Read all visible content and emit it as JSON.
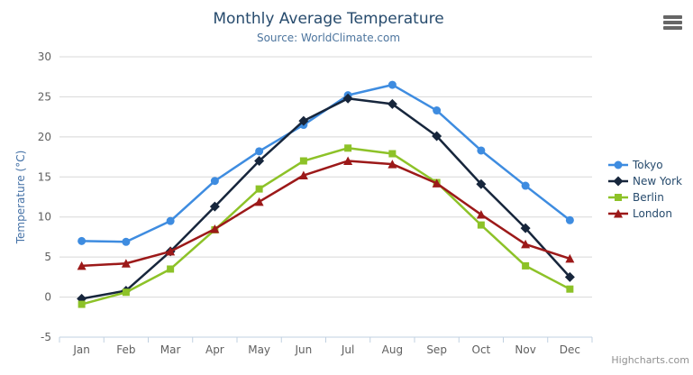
{
  "header": {
    "title": "Monthly Average Temperature",
    "subtitle": "Source: WorldClimate.com"
  },
  "controls": {
    "menu_icon": "hamburger-menu-icon"
  },
  "credits": {
    "label": "Highcharts.com"
  },
  "colors": {
    "title": "#274B6D",
    "subtitle": "#4D759E",
    "axis_label": "#606060",
    "y_axis_title": "#4572A7",
    "grid": "#D8D8D8",
    "axis_line": "#C0D0E0",
    "legend_text": "#274B6D",
    "menu_icon": "#666666",
    "credits": "#909090",
    "background": "#FFFFFF"
  },
  "chart_data": {
    "type": "line",
    "title": "Monthly Average Temperature",
    "subtitle": "Source: WorldClimate.com",
    "categories": [
      "Jan",
      "Feb",
      "Mar",
      "Apr",
      "May",
      "Jun",
      "Jul",
      "Aug",
      "Sep",
      "Oct",
      "Nov",
      "Dec"
    ],
    "xlabel": "",
    "ylabel": "Temperature (°C)",
    "ylim": [
      -5,
      30
    ],
    "ytick_step": 5,
    "grid": true,
    "legend_position": "right",
    "series": [
      {
        "name": "Tokyo",
        "color": "#3E8CE0",
        "marker": "circle",
        "values": [
          7.0,
          6.9,
          9.5,
          14.5,
          18.2,
          21.5,
          25.2,
          26.5,
          23.3,
          18.3,
          13.9,
          9.6
        ]
      },
      {
        "name": "New York",
        "color": "#17263C",
        "marker": "diamond",
        "values": [
          -0.2,
          0.8,
          5.7,
          11.3,
          17.0,
          22.0,
          24.8,
          24.1,
          20.1,
          14.1,
          8.6,
          2.5
        ]
      },
      {
        "name": "Berlin",
        "color": "#8DC228",
        "marker": "square",
        "values": [
          -0.9,
          0.6,
          3.5,
          8.4,
          13.5,
          17.0,
          18.6,
          17.9,
          14.3,
          9.0,
          3.9,
          1.0
        ]
      },
      {
        "name": "London",
        "color": "#9C1919",
        "marker": "triangle",
        "values": [
          3.9,
          4.2,
          5.7,
          8.5,
          11.9,
          15.2,
          17.0,
          16.6,
          14.2,
          10.3,
          6.6,
          4.8
        ]
      }
    ]
  }
}
